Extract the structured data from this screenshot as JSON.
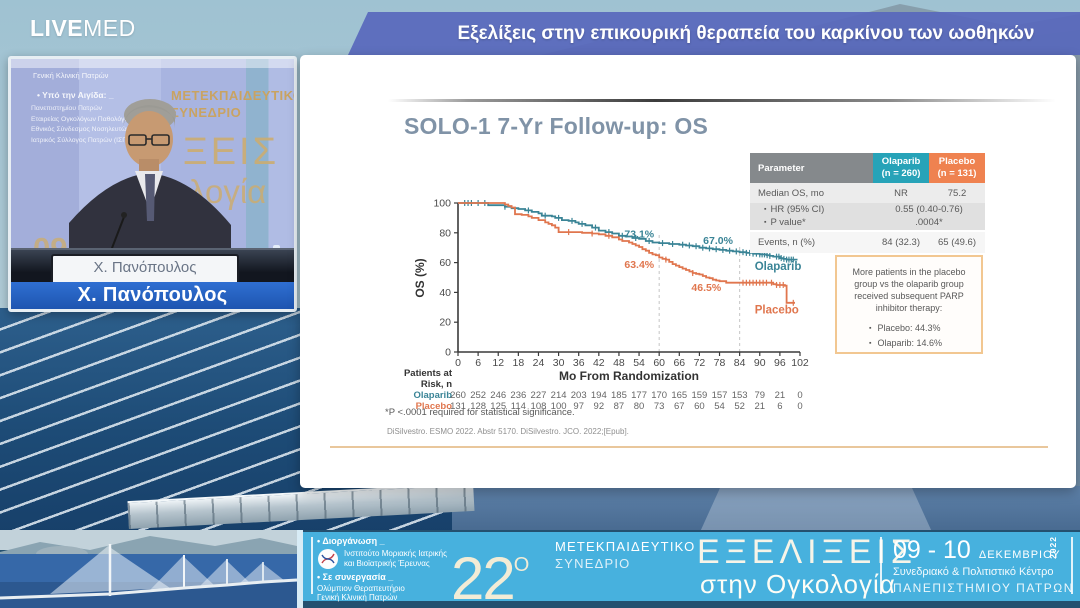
{
  "header": {
    "logo_bold": "LIVE",
    "logo_light": "MED",
    "title": "Εξελίξεις στην επικουρική θεραπεία του καρκίνου των ωοθηκών"
  },
  "video": {
    "caption": "Χ. Πανόπουλος",
    "podium_name": "Χ. Πανόπουλος",
    "backdrop": {
      "clinic": "Γενική Κλινική Πατρών",
      "aegis_title": "• Υπό την Αιγίδα: _",
      "aegis1": "Πανεπιστημίου Πατρών",
      "aegis2": "Εταιρείας Ογκολόγων Παθολόγων Ελλάδος",
      "aegis3": "Εθνικός Σύνδεσμος Νοσηλευτών ΕΛΛΑΔΟΣ",
      "aegis4": "Ιατρικός Σύλλογος Πατρών (ΙΣΠ)",
      "congress1": "ΜΕΤΕΚΠΑΙΔΕΥΤΙΚΟ",
      "congress2": "ΣΥΝΕΔΡΙΟ",
      "big1": "ΞΕΙΣ",
      "big2": "λογία",
      "date": "09",
      "date2": "ΔΕ",
      "edge1": "ικό Κέν",
      "edge2": "ΠΑΤ"
    }
  },
  "slide": {
    "title": "SOLO-1 7-Yr Follow-up: OS",
    "table": {
      "h_param": "Parameter",
      "h_col1a": "Olaparib",
      "h_col1b": "(n = 260)",
      "h_col2a": "Placebo",
      "h_col2b": "(n = 131)",
      "r1_label": "Median OS, mo",
      "r1_v1": "NR",
      "r1_v2": "75.2",
      "r2_b1": "HR (95% CI)",
      "r2_b2": "P value*",
      "r2_v1": "0.55 (0.40-0.76)",
      "r2_v2": ".0004*",
      "r3_label": "Events, n (%)",
      "r3_v1": "84 (32.3)",
      "r3_v2": "65 (49.6)"
    },
    "note": {
      "text": "More patients in the placebo group vs the olaparib group received subsequent PARP inhibitor therapy:",
      "bullet1": "Placebo: 44.3%",
      "bullet2": "Olaparib: 14.6%"
    },
    "footnote": "*P <.0001 required for statistical significance.",
    "citation": "DiSilvestro. ESMO 2022. Abstr 5170. DiSilvestro. JCO. 2022;[Epub]."
  },
  "chart_data": {
    "type": "line",
    "subtype": "kaplan-meier",
    "title": "SOLO-1 7-Yr Follow-up: OS",
    "xlabel": "Mo From Randomization",
    "ylabel": "OS (%)",
    "xlim": [
      0,
      102
    ],
    "ylim": [
      0,
      100
    ],
    "xticks": [
      0,
      6,
      12,
      18,
      24,
      30,
      36,
      42,
      48,
      54,
      60,
      66,
      72,
      78,
      84,
      90,
      96,
      102
    ],
    "yticks": [
      0,
      20,
      40,
      60,
      80,
      100
    ],
    "dashed_lines": [
      {
        "x": 60,
        "y_top": 79
      },
      {
        "x": 84,
        "y_top": 71
      }
    ],
    "series": [
      {
        "name": "Olaparib",
        "color": "#3a8496",
        "points": [
          [
            0,
            100
          ],
          [
            8,
            100
          ],
          [
            9,
            98.5
          ],
          [
            13,
            98.5
          ],
          [
            14,
            97.5
          ],
          [
            16,
            96.5
          ],
          [
            18,
            96
          ],
          [
            20,
            95
          ],
          [
            22,
            94
          ],
          [
            24,
            93
          ],
          [
            25,
            91.5
          ],
          [
            28,
            91
          ],
          [
            29,
            90
          ],
          [
            31,
            88.5
          ],
          [
            33,
            88
          ],
          [
            35,
            87
          ],
          [
            36,
            86
          ],
          [
            38,
            85
          ],
          [
            40,
            83.5
          ],
          [
            42,
            81.5
          ],
          [
            44,
            80.5
          ],
          [
            46,
            79.5
          ],
          [
            48,
            78
          ],
          [
            50,
            77.5
          ],
          [
            52,
            76.5
          ],
          [
            54,
            76
          ],
          [
            56,
            74.5
          ],
          [
            58,
            73.5
          ],
          [
            60,
            73.1
          ],
          [
            63,
            72.5
          ],
          [
            66,
            72
          ],
          [
            68,
            71.5
          ],
          [
            70,
            71
          ],
          [
            72,
            70
          ],
          [
            74,
            69.5
          ],
          [
            76,
            69
          ],
          [
            78,
            68.5
          ],
          [
            80,
            68
          ],
          [
            82,
            67.5
          ],
          [
            84,
            67
          ],
          [
            86,
            66.5
          ],
          [
            88,
            66
          ],
          [
            90,
            65.5
          ],
          [
            92,
            65
          ],
          [
            93,
            64.5
          ],
          [
            94,
            64
          ],
          [
            96,
            63
          ],
          [
            97,
            62.5
          ],
          [
            98,
            62
          ],
          [
            101,
            61.5
          ]
        ],
        "censor_ticks": [
          2,
          3,
          4,
          6,
          8,
          14,
          21,
          26,
          30,
          34,
          37,
          41,
          45,
          49,
          53,
          57,
          61,
          64,
          67,
          69,
          71,
          73,
          75,
          77,
          79,
          81,
          83,
          85,
          86,
          87,
          88,
          89,
          90,
          90.7,
          91.4,
          92.2,
          93,
          95,
          95.7,
          96.4,
          97.2,
          98,
          98.7,
          99.4,
          100
        ],
        "annotations": [
          {
            "text": "73.1%",
            "x": 58.5,
            "y": 77,
            "anchor": "end"
          },
          {
            "text": "67.0%",
            "x": 82,
            "y": 72.5,
            "anchor": "end"
          }
        ],
        "end_label_xy": [
          88.5,
          55
        ]
      },
      {
        "name": "Placebo",
        "color": "#e0764e",
        "points": [
          [
            0,
            100
          ],
          [
            13,
            100
          ],
          [
            14,
            99
          ],
          [
            15,
            98
          ],
          [
            16,
            97
          ],
          [
            17,
            92.5
          ],
          [
            19,
            92
          ],
          [
            21,
            91
          ],
          [
            22,
            90
          ],
          [
            24,
            88.5
          ],
          [
            26,
            87
          ],
          [
            27,
            86
          ],
          [
            28,
            85
          ],
          [
            29,
            83.5
          ],
          [
            30,
            80.5
          ],
          [
            37,
            80
          ],
          [
            40,
            79.5
          ],
          [
            42,
            79
          ],
          [
            44,
            78
          ],
          [
            46,
            77
          ],
          [
            48,
            75.5
          ],
          [
            49,
            74.5
          ],
          [
            51,
            73.5
          ],
          [
            52,
            72.5
          ],
          [
            53,
            71.5
          ],
          [
            54,
            70.5
          ],
          [
            55,
            69
          ],
          [
            56,
            68
          ],
          [
            57,
            66.5
          ],
          [
            58,
            65.5
          ],
          [
            59,
            65
          ],
          [
            60,
            63.4
          ],
          [
            61,
            62.5
          ],
          [
            62,
            62
          ],
          [
            63,
            60.5
          ],
          [
            64,
            59
          ],
          [
            65,
            58
          ],
          [
            66,
            57
          ],
          [
            67,
            56
          ],
          [
            68,
            55
          ],
          [
            69,
            54
          ],
          [
            70,
            53
          ],
          [
            71,
            52.5
          ],
          [
            72,
            52
          ],
          [
            73,
            51
          ],
          [
            74,
            50
          ],
          [
            75,
            49.5
          ],
          [
            76,
            48.5
          ],
          [
            77,
            48
          ],
          [
            78,
            47.5
          ],
          [
            80,
            46.5
          ],
          [
            93,
            46.5
          ],
          [
            94,
            45.5
          ],
          [
            95,
            45
          ],
          [
            97.5,
            44.5
          ],
          [
            98,
            33
          ],
          [
            100.5,
            33
          ]
        ],
        "censor_ticks": [
          33,
          40,
          45,
          62,
          70,
          85,
          86,
          87,
          88,
          89,
          90,
          91,
          92,
          93.5,
          95,
          96,
          97,
          100
        ],
        "annotations": [
          {
            "text": "63.4%",
            "x": 58.5,
            "y": 56.5,
            "anchor": "end"
          },
          {
            "text": "46.5%",
            "x": 78.5,
            "y": 41,
            "anchor": "end"
          }
        ],
        "end_label_xy": [
          88.5,
          26
        ]
      }
    ],
    "risk_table": {
      "label1": "Patients at",
      "label2": "Risk, n",
      "rows": [
        {
          "name": "Olaparib",
          "color": "#3a8496",
          "values": [
            260,
            252,
            246,
            236,
            227,
            214,
            203,
            194,
            185,
            177,
            170,
            165,
            159,
            157,
            153,
            79,
            21,
            0
          ]
        },
        {
          "name": "Placebo",
          "color": "#e0764e",
          "values": [
            131,
            128,
            125,
            114,
            108,
            100,
            97,
            92,
            87,
            80,
            73,
            67,
            60,
            54,
            52,
            21,
            6,
            0
          ]
        }
      ]
    }
  },
  "footer": {
    "organizer_label": "• Διοργάνωση _",
    "organizer1": "Ινστιτούτο Μοριακής Ιατρικής",
    "organizer2": "και Βιοϊατρικής Έρευνας",
    "collab_label": "• Σε συνεργασία _",
    "collab1": "Ολύμπιον Θεραπευτήριο",
    "collab2": "Γενική Κλινική Πατρών",
    "number": "22",
    "number_sup": "Ο",
    "congress1": "ΜΕΤΕΚΠΑΙΔΕΥΤΙΚΟ",
    "congress2": "ΣΥΝΕΔΡΙΟ",
    "title1": "ΕΞΕΛΙΞΕΙΣ",
    "title2": "στην Ογκολογία",
    "dates": "09 - 10",
    "month": "ΔΕΚΕΜΒΡΙΟΥ",
    "year": "2022",
    "venue1": "Συνεδριακό & Πολιτιστικό Κέντρο",
    "venue2": "ΠΑΝΕΠΙΣΤΗΜΙΟΥ ΠΑΤΡΩΝ"
  },
  "colors": {
    "teal_curve": "#3a8496",
    "orange_curve": "#e0764e",
    "teal_header": "#27a3b8",
    "orange_header": "#ef8250",
    "caption_blue": "#2563c4",
    "banner_blue": "#47b1de",
    "bar_blue": "#5868bc"
  }
}
